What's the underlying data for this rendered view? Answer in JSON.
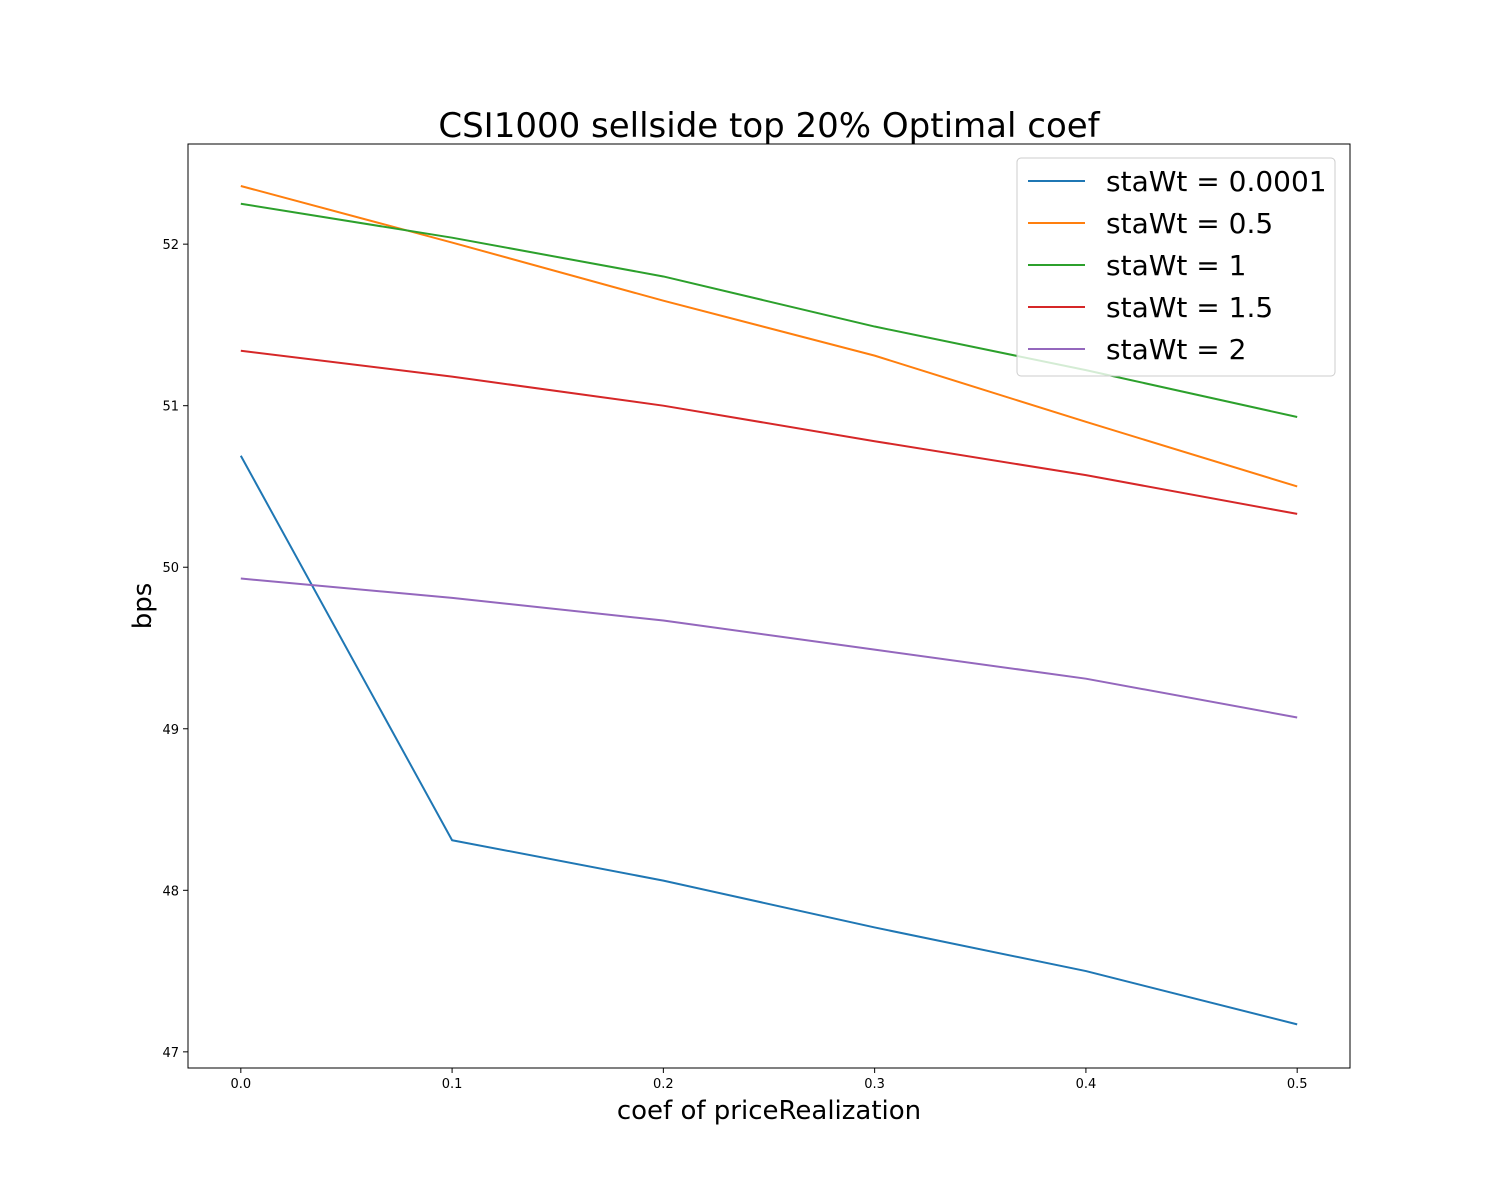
{
  "chart_data": {
    "type": "line",
    "title": "CSI1000 sellside top 20% Optimal coef",
    "xlabel": "coef of priceRealization",
    "ylabel": "bps",
    "x": [
      0.0,
      0.1,
      0.2,
      0.3,
      0.4,
      0.5
    ],
    "xlim": [
      -0.025,
      0.525
    ],
    "ylim": [
      46.9,
      52.62
    ],
    "xticks": [
      "0.0",
      "0.1",
      "0.2",
      "0.3",
      "0.4",
      "0.5"
    ],
    "yticks": [
      "47",
      "48",
      "49",
      "50",
      "51",
      "52"
    ],
    "grid": false,
    "legend_position": "top-right",
    "series": [
      {
        "name": "staWt = 0.0001",
        "color": "#1f77b4",
        "values": [
          50.69,
          48.31,
          48.06,
          47.77,
          47.5,
          47.17
        ]
      },
      {
        "name": "staWt = 0.5",
        "color": "#ff7f0e",
        "values": [
          52.36,
          52.01,
          51.65,
          51.31,
          50.9,
          50.5
        ]
      },
      {
        "name": "staWt = 1",
        "color": "#2ca02c",
        "values": [
          52.25,
          52.04,
          51.8,
          51.49,
          51.22,
          50.93
        ]
      },
      {
        "name": "staWt = 1.5",
        "color": "#d62728",
        "values": [
          51.34,
          51.18,
          51.0,
          50.78,
          50.57,
          50.33
        ]
      },
      {
        "name": "staWt = 2",
        "color": "#9467bd",
        "values": [
          49.93,
          49.81,
          49.67,
          49.49,
          49.31,
          49.07
        ]
      }
    ]
  }
}
